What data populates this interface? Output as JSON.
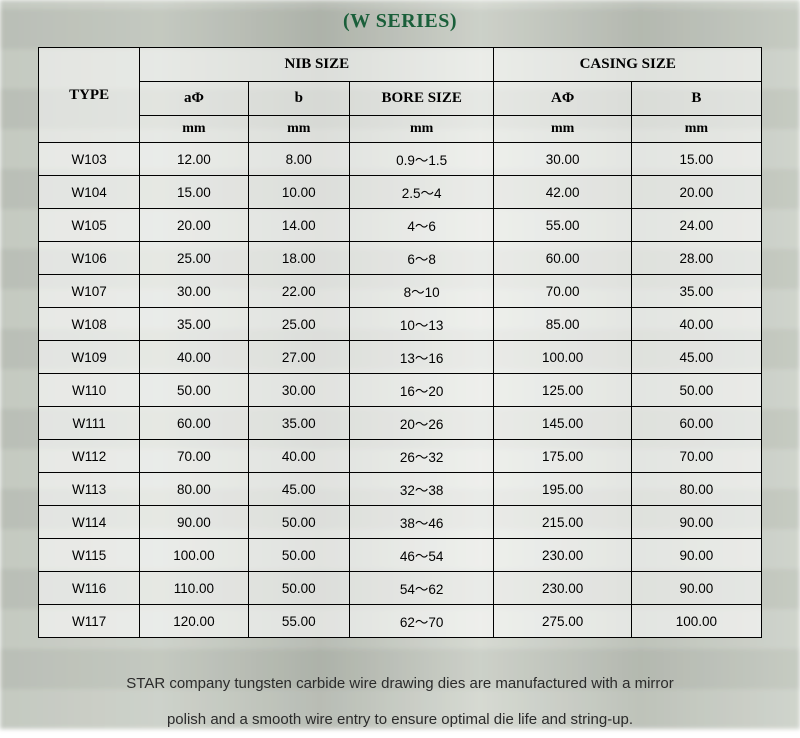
{
  "title": "(W SERIES)",
  "title_color": "#1a5f3a",
  "border_color": "#000000",
  "header": {
    "type": "TYPE",
    "nib_group": "NIB SIZE",
    "casing_group": "CASING SIZE",
    "a_phi": "aΦ",
    "b": "b",
    "bore": "BORE SIZE",
    "A_phi": "AΦ",
    "B": "B",
    "unit": "mm"
  },
  "columns": [
    "type",
    "a_phi",
    "b",
    "bore",
    "A_phi",
    "B"
  ],
  "rows": [
    {
      "type": "W103",
      "a_phi": "12.00",
      "b": "8.00",
      "bore": "0.9～1.5",
      "A_phi": "30.00",
      "B": "15.00"
    },
    {
      "type": "W104",
      "a_phi": "15.00",
      "b": "10.00",
      "bore": "2.5～4",
      "A_phi": "42.00",
      "B": "20.00"
    },
    {
      "type": "W105",
      "a_phi": "20.00",
      "b": "14.00",
      "bore": "4～6",
      "A_phi": "55.00",
      "B": "24.00"
    },
    {
      "type": "W106",
      "a_phi": "25.00",
      "b": "18.00",
      "bore": "6～8",
      "A_phi": "60.00",
      "B": "28.00"
    },
    {
      "type": "W107",
      "a_phi": "30.00",
      "b": "22.00",
      "bore": "8～10",
      "A_phi": "70.00",
      "B": "35.00"
    },
    {
      "type": "W108",
      "a_phi": "35.00",
      "b": "25.00",
      "bore": "10～13",
      "A_phi": "85.00",
      "B": "40.00"
    },
    {
      "type": "W109",
      "a_phi": "40.00",
      "b": "27.00",
      "bore": "13～16",
      "A_phi": "100.00",
      "B": "45.00"
    },
    {
      "type": "W110",
      "a_phi": "50.00",
      "b": "30.00",
      "bore": "16～20",
      "A_phi": "125.00",
      "B": "50.00"
    },
    {
      "type": "W111",
      "a_phi": "60.00",
      "b": "35.00",
      "bore": "20～26",
      "A_phi": "145.00",
      "B": "60.00"
    },
    {
      "type": "W112",
      "a_phi": "70.00",
      "b": "40.00",
      "bore": "26～32",
      "A_phi": "175.00",
      "B": "70.00"
    },
    {
      "type": "W113",
      "a_phi": "80.00",
      "b": "45.00",
      "bore": "32～38",
      "A_phi": "195.00",
      "B": "80.00"
    },
    {
      "type": "W114",
      "a_phi": "90.00",
      "b": "50.00",
      "bore": "38～46",
      "A_phi": "215.00",
      "B": "90.00"
    },
    {
      "type": "W115",
      "a_phi": "100.00",
      "b": "50.00",
      "bore": "46～54",
      "A_phi": "230.00",
      "B": "90.00"
    },
    {
      "type": "W116",
      "a_phi": "110.00",
      "b": "50.00",
      "bore": "54～62",
      "A_phi": "230.00",
      "B": "90.00"
    },
    {
      "type": "W117",
      "a_phi": "120.00",
      "b": "55.00",
      "bore": "62～70",
      "A_phi": "275.00",
      "B": "100.00"
    }
  ],
  "footer_line1": "STAR company tungsten carbide wire drawing dies are manufactured with a mirror",
  "footer_line2": "polish and a smooth wire entry to ensure optimal die life and string-up."
}
